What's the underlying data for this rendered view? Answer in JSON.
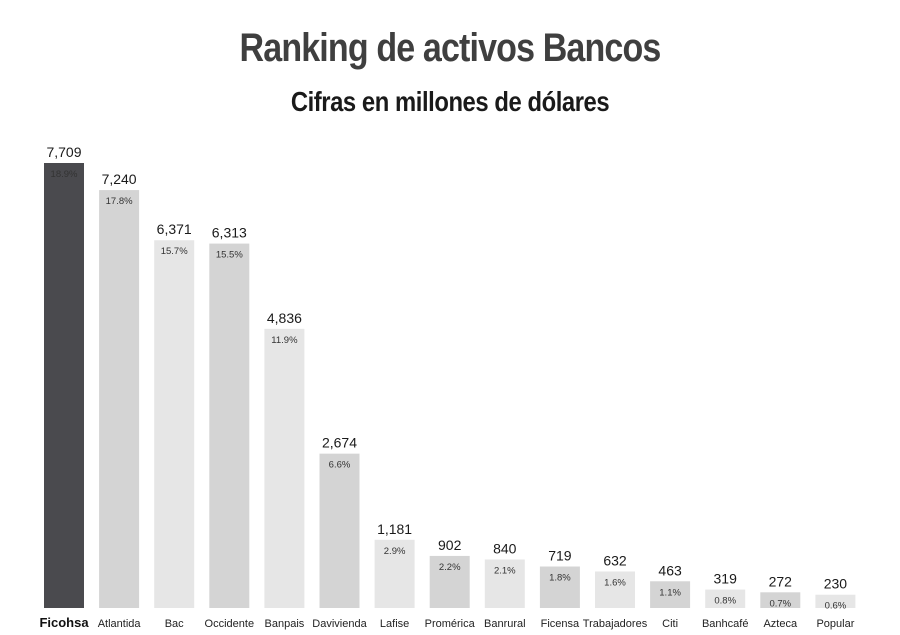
{
  "chart_data": {
    "type": "bar",
    "title": "Ranking de activos Bancos",
    "subtitle": "Cifras en millones de dólares",
    "categories": [
      "Ficohsa",
      "Atlantida",
      "Bac",
      "Occidente",
      "Banpais",
      "Davivienda",
      "Lafise",
      "Promérica",
      "Banrural",
      "Ficensa",
      "Trabajadores",
      "Citi",
      "Banhcafé",
      "Azteca",
      "Popular"
    ],
    "values": [
      7709,
      7240,
      6371,
      6313,
      4836,
      2674,
      1181,
      902,
      840,
      719,
      632,
      463,
      319,
      272,
      230
    ],
    "value_labels": [
      "7,709",
      "7,240",
      "6,371",
      "6,313",
      "4,836",
      "2,674",
      "1,181",
      "902",
      "840",
      "719",
      "632",
      "463",
      "319",
      "272",
      "230"
    ],
    "shares": [
      "18.9%",
      "17.8%",
      "15.7%",
      "15.5%",
      "11.9%",
      "6.6%",
      "2.9%",
      "2.2%",
      "2.1%",
      "1.8%",
      "1.6%",
      "1.1%",
      "0.8%",
      "0.7%",
      "0.6%"
    ],
    "bar_colors": [
      "#4a4a4e",
      "#d4d4d4",
      "#e6e6e6",
      "#d4d4d4",
      "#e6e6e6",
      "#d4d4d4",
      "#e6e6e6",
      "#d4d4d4",
      "#e6e6e6",
      "#d4d4d4",
      "#e6e6e6",
      "#d4d4d4",
      "#e6e6e6",
      "#d4d4d4",
      "#e6e6e6"
    ],
    "highlight_color": "#4a4a4e",
    "highlight_index": 0,
    "grid": false,
    "legend": "none"
  }
}
